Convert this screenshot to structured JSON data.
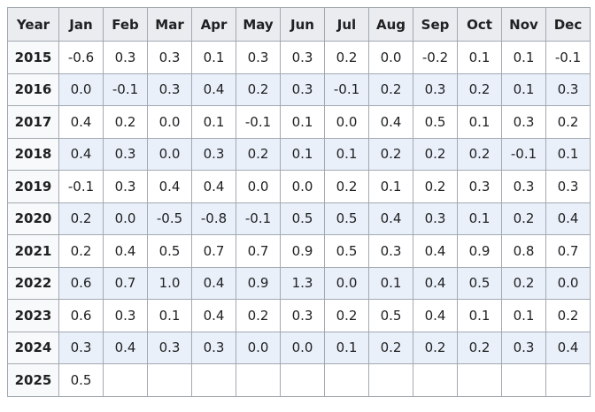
{
  "table": {
    "header": [
      "Year",
      "Jan",
      "Feb",
      "Mar",
      "Apr",
      "May",
      "Jun",
      "Jul",
      "Aug",
      "Sep",
      "Oct",
      "Nov",
      "Dec"
    ],
    "rows": [
      [
        "2015",
        "-0.6",
        "0.3",
        "0.3",
        "0.1",
        "0.3",
        "0.3",
        "0.2",
        "0.0",
        "-0.2",
        "0.1",
        "0.1",
        "-0.1"
      ],
      [
        "2016",
        "0.0",
        "-0.1",
        "0.3",
        "0.4",
        "0.2",
        "0.3",
        "-0.1",
        "0.2",
        "0.3",
        "0.2",
        "0.1",
        "0.3"
      ],
      [
        "2017",
        "0.4",
        "0.2",
        "0.0",
        "0.1",
        "-0.1",
        "0.1",
        "0.0",
        "0.4",
        "0.5",
        "0.1",
        "0.3",
        "0.2"
      ],
      [
        "2018",
        "0.4",
        "0.3",
        "0.0",
        "0.3",
        "0.2",
        "0.1",
        "0.1",
        "0.2",
        "0.2",
        "0.2",
        "-0.1",
        "0.1"
      ],
      [
        "2019",
        "-0.1",
        "0.3",
        "0.4",
        "0.4",
        "0.0",
        "0.0",
        "0.2",
        "0.1",
        "0.2",
        "0.3",
        "0.3",
        "0.3"
      ],
      [
        "2020",
        "0.2",
        "0.0",
        "-0.5",
        "-0.8",
        "-0.1",
        "0.5",
        "0.5",
        "0.4",
        "0.3",
        "0.1",
        "0.2",
        "0.4"
      ],
      [
        "2021",
        "0.2",
        "0.4",
        "0.5",
        "0.7",
        "0.7",
        "0.9",
        "0.5",
        "0.3",
        "0.4",
        "0.9",
        "0.8",
        "0.7"
      ],
      [
        "2022",
        "0.6",
        "0.7",
        "1.0",
        "0.4",
        "0.9",
        "1.3",
        "0.0",
        "0.1",
        "0.4",
        "0.5",
        "0.2",
        "0.0"
      ],
      [
        "2023",
        "0.6",
        "0.3",
        "0.1",
        "0.4",
        "0.2",
        "0.3",
        "0.2",
        "0.5",
        "0.4",
        "0.1",
        "0.1",
        "0.2"
      ],
      [
        "2024",
        "0.3",
        "0.4",
        "0.3",
        "0.3",
        "0.0",
        "0.0",
        "0.1",
        "0.2",
        "0.2",
        "0.2",
        "0.3",
        "0.4"
      ],
      [
        "2025",
        "0.5"
      ]
    ]
  }
}
